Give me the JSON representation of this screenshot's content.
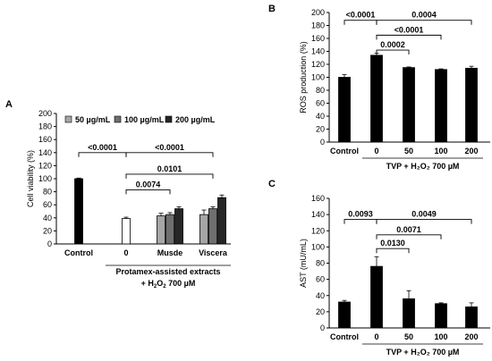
{
  "colors": {
    "black": "#000000",
    "white": "#ffffff",
    "gray_light": "#a6a6a6",
    "gray_mid": "#6f6f6f",
    "gray_dark": "#262626"
  },
  "chart_data": [
    {
      "panel": "A",
      "type": "bar",
      "ylabel": "Cell viability (%)",
      "ylim": [
        0,
        200
      ],
      "yticks": [
        0,
        20,
        40,
        60,
        80,
        100,
        120,
        140,
        160,
        180,
        200
      ],
      "grid": false,
      "legend_position": "top-center",
      "legend": [
        "50 µg/mL",
        "100 µg/mL",
        "200 µg/mL"
      ],
      "groups": [
        {
          "label": "Control",
          "bars": [
            {
              "value": 100,
              "err": 1,
              "fill": "black"
            }
          ]
        },
        {
          "label": "0",
          "bars": [
            {
              "value": 39,
              "err": 2,
              "fill": "white"
            }
          ]
        },
        {
          "label": "Musde",
          "bars": [
            {
              "value": 43,
              "err": 4,
              "fill": "gray_light"
            },
            {
              "value": 45,
              "err": 3,
              "fill": "gray_mid"
            },
            {
              "value": 54,
              "err": 3,
              "fill": "gray_dark"
            }
          ]
        },
        {
          "label": "Viscera",
          "bars": [
            {
              "value": 45,
              "err": 7,
              "fill": "gray_light"
            },
            {
              "value": 54,
              "err": 3,
              "fill": "gray_mid"
            },
            {
              "value": 71,
              "err": 4,
              "fill": "gray_dark"
            }
          ]
        }
      ],
      "xlabel_line1": "Protamex-assisted extracts",
      "xlabel_line2_pre": "+ H",
      "xlabel_sub1": "2",
      "xlabel_mid": "O",
      "xlabel_sub2": "2",
      "xlabel_post": " 700 µM",
      "comparisons": [
        {
          "label": "<0.0001",
          "from": "Control",
          "to": "0",
          "y": 140
        },
        {
          "label": "<0.0001",
          "from": "0",
          "to": "Viscera",
          "y": 140
        },
        {
          "label": "0.0101",
          "from": "0",
          "to": "Viscera",
          "y": 107
        },
        {
          "label": "0.0074",
          "from": "0",
          "to": "Musde",
          "y": 83
        }
      ]
    },
    {
      "panel": "B",
      "type": "bar",
      "ylabel": "ROS production (%)",
      "ylim": [
        0,
        200
      ],
      "yticks": [
        0,
        20,
        40,
        60,
        80,
        100,
        120,
        140,
        160,
        180,
        200
      ],
      "grid": false,
      "categories": [
        "Control",
        "0",
        "50",
        "100",
        "200"
      ],
      "values": [
        100,
        134,
        115,
        112,
        114
      ],
      "errors": [
        4,
        3,
        1,
        1,
        3
      ],
      "xlabel": "TVP + H₂O₂ 700 µM",
      "comparisons": [
        {
          "label": "<0.0001",
          "from": "Control",
          "to": "0",
          "y": 188
        },
        {
          "label": "0.0004",
          "from": "0",
          "to": "200",
          "y": 188
        },
        {
          "label": "<0.0001",
          "from": "0",
          "to": "100",
          "y": 165
        },
        {
          "label": "0.0002",
          "from": "0",
          "to": "50",
          "y": 142
        }
      ]
    },
    {
      "panel": "C",
      "type": "bar",
      "ylabel": "AST (mU/mL)",
      "ylim": [
        0,
        160
      ],
      "yticks": [
        0,
        20,
        40,
        60,
        80,
        100,
        120,
        140,
        160
      ],
      "grid": false,
      "categories": [
        "Control",
        "0",
        "50",
        "100",
        "200"
      ],
      "values": [
        32,
        76,
        36,
        30,
        26
      ],
      "errors": [
        2,
        12,
        10,
        1,
        5
      ],
      "xlabel": "TVP + H₂O₂ 700 µM",
      "comparisons": [
        {
          "label": "0.0093",
          "from": "Control",
          "to": "0",
          "y": 134
        },
        {
          "label": "0.0049",
          "from": "0",
          "to": "200",
          "y": 134
        },
        {
          "label": "0.0071",
          "from": "0",
          "to": "100",
          "y": 115
        },
        {
          "label": "0.0130",
          "from": "0",
          "to": "50",
          "y": 98
        }
      ]
    }
  ]
}
